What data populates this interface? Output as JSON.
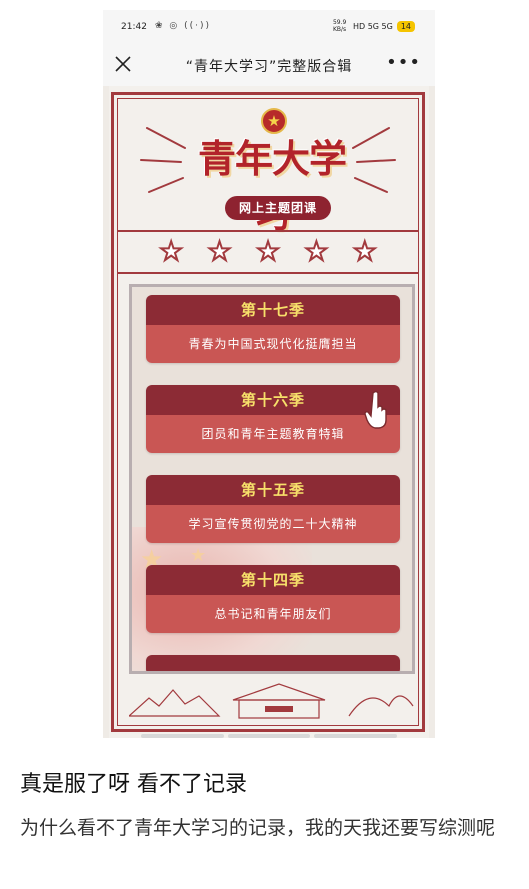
{
  "status_bar": {
    "time": "21:42",
    "indicators": "❀ ◎ ((·))",
    "network": "59.9 KB/s",
    "signal": "HD 5G 5G",
    "battery": "14"
  },
  "navbar": {
    "title": "“青年大学习”完整版合辑",
    "more": "•••"
  },
  "poster": {
    "logo": "青年大学习",
    "subtitle": "网上主题团课",
    "accent_color": "#8c2b35",
    "card_bottom_color": "#c95654",
    "season_title_color": "#f7e06a"
  },
  "seasons": [
    {
      "title": "第十七季",
      "subtitle": "青春为中国式现代化挺膺担当"
    },
    {
      "title": "第十六季",
      "subtitle": "团员和青年主题教育特辑"
    },
    {
      "title": "第十五季",
      "subtitle": "学习宣传贯彻党的二十大精神"
    },
    {
      "title": "第十四季",
      "subtitle": "总书记和青年朋友们"
    }
  ],
  "post": {
    "title": "真是服了呀 看不了记录",
    "body": "为什么看不了青年大学习的记录，我的天我还要写综测呢"
  }
}
